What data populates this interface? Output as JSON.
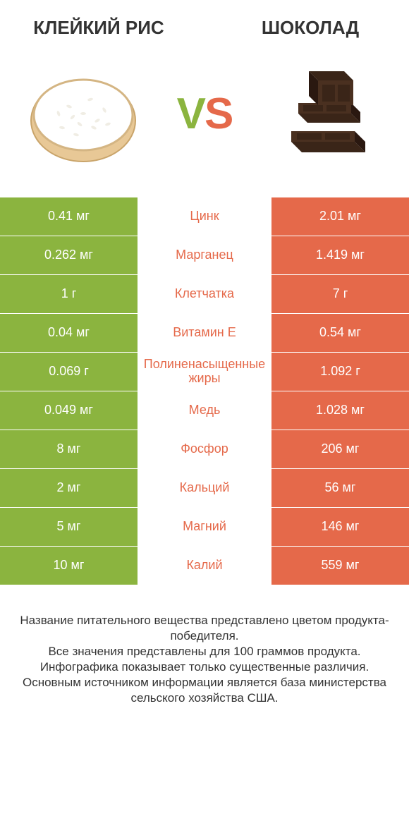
{
  "colors": {
    "left_col": "#8bb43f",
    "right_col": "#e5694a",
    "mid_text_left": "#8bb43f",
    "mid_text_right": "#e5694a",
    "vs_left": "#8bb43f",
    "vs_right": "#e5694a",
    "row_border": "#ffffff"
  },
  "header": {
    "left_title": "КЛЕЙКИЙ РИС",
    "right_title": "ШОКОЛАД",
    "vs_v": "V",
    "vs_s": "S"
  },
  "rows": [
    {
      "left": "0.41 мг",
      "mid": "Цинк",
      "right": "2.01 мг",
      "winner": "right"
    },
    {
      "left": "0.262 мг",
      "mid": "Марганец",
      "right": "1.419 мг",
      "winner": "right"
    },
    {
      "left": "1 г",
      "mid": "Клетчатка",
      "right": "7 г",
      "winner": "right"
    },
    {
      "left": "0.04 мг",
      "mid": "Витамин E",
      "right": "0.54 мг",
      "winner": "right"
    },
    {
      "left": "0.069 г",
      "mid": "Полиненасыщенные жиры",
      "right": "1.092 г",
      "winner": "right"
    },
    {
      "left": "0.049 мг",
      "mid": "Медь",
      "right": "1.028 мг",
      "winner": "right"
    },
    {
      "left": "8 мг",
      "mid": "Фосфор",
      "right": "206 мг",
      "winner": "right"
    },
    {
      "left": "2 мг",
      "mid": "Кальций",
      "right": "56 мг",
      "winner": "right"
    },
    {
      "left": "5 мг",
      "mid": "Магний",
      "right": "146 мг",
      "winner": "right"
    },
    {
      "left": "10 мг",
      "mid": "Калий",
      "right": "559 мг",
      "winner": "right"
    }
  ],
  "footer": {
    "line1": "Название питательного вещества представлено цветом продукта-победителя.",
    "line2": "Все значения представлены для 100 граммов продукта.",
    "line3": "Инфографика показывает только существенные различия.",
    "line4": "Основным источником информации является база министерства сельского хозяйства США."
  }
}
